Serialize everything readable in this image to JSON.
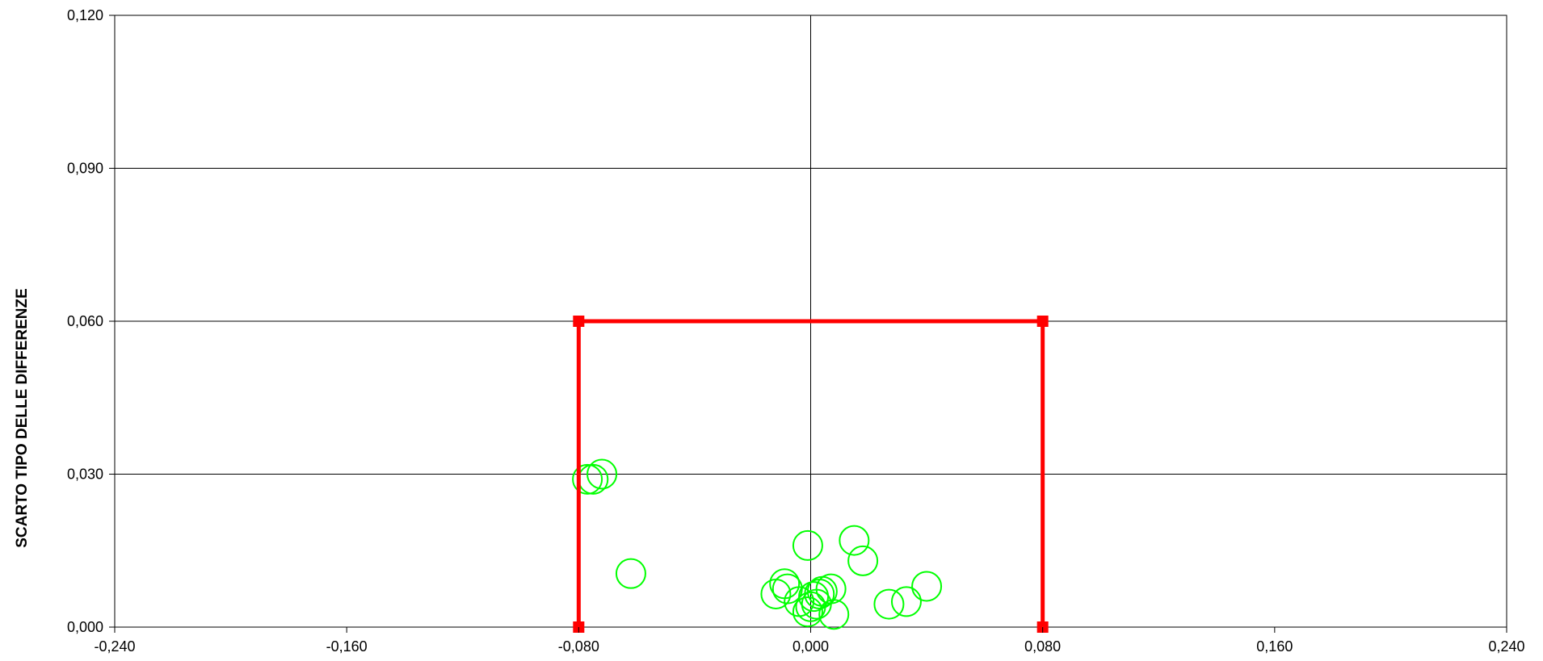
{
  "chart_data": {
    "type": "scatter",
    "title": "",
    "xlabel": "",
    "ylabel": "SCARTO TIPO DELLE DIFFERENZE",
    "xlim": [
      -0.24,
      0.24
    ],
    "ylim": [
      0,
      0.12
    ],
    "x_ticks": [
      "-0,240",
      "-0,160",
      "-0,080",
      "0,000",
      "0,080",
      "0,160",
      "0,240"
    ],
    "y_ticks": [
      "0,000",
      "0,030",
      "0,060",
      "0,090",
      "0,120"
    ],
    "grid": {
      "horizontal": true,
      "vertical": false,
      "zero_lines": true
    },
    "legend": "none",
    "series": [
      {
        "type": "scatter",
        "color": "#00ff00",
        "marker": "circle-open",
        "x": [
          -0.077,
          -0.075,
          -0.072,
          -0.062,
          -0.012,
          -0.009,
          -0.008,
          -0.004,
          -0.001,
          -0.001,
          0.0,
          0.001,
          0.002,
          0.003,
          0.004,
          0.007,
          0.008,
          0.015,
          0.018,
          0.027,
          0.033,
          0.04
        ],
        "y": [
          0.029,
          0.029,
          0.03,
          0.0105,
          0.0065,
          0.0085,
          0.0075,
          0.005,
          0.003,
          0.016,
          0.004,
          0.006,
          0.0045,
          0.0065,
          0.007,
          0.0075,
          0.0025,
          0.017,
          0.013,
          0.0045,
          0.005,
          0.008
        ]
      },
      {
        "type": "line",
        "color": "#ff0000",
        "marker": "square",
        "x": [
          -0.08,
          -0.08,
          0.08,
          0.08
        ],
        "y": [
          0.0,
          0.06,
          0.06,
          0.0
        ]
      }
    ]
  }
}
